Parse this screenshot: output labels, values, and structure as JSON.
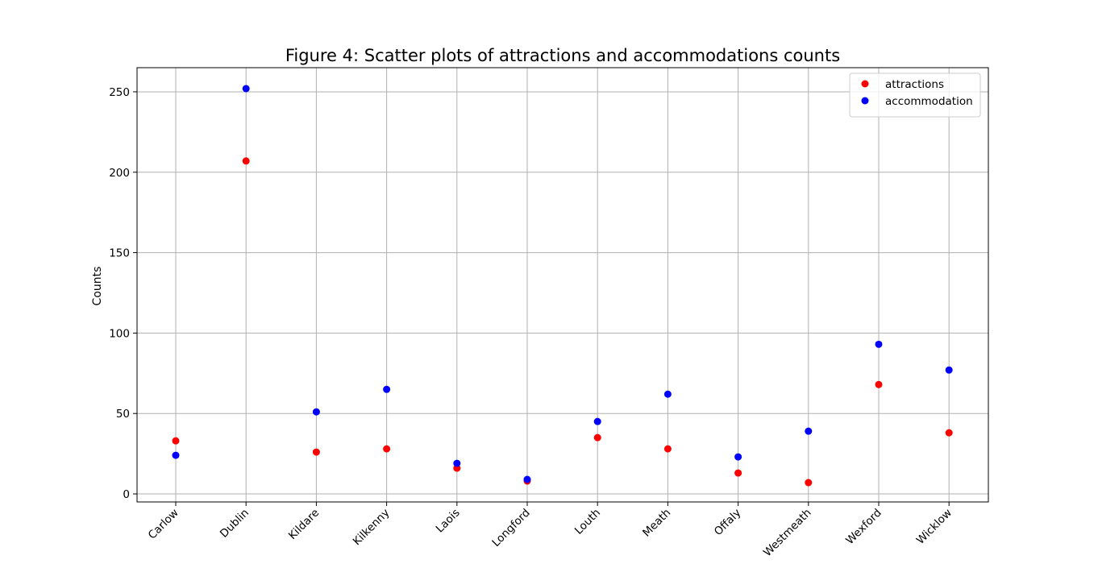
{
  "chart_data": {
    "type": "scatter",
    "title": "Figure 4: Scatter plots of attractions and accommodations counts",
    "xlabel": "",
    "ylabel": "Counts",
    "categories": [
      "Carlow",
      "Dublin",
      "Kildare",
      "Kilkenny",
      "Laois",
      "Longford",
      "Louth",
      "Meath",
      "Offaly",
      "Westmeath",
      "Wexford",
      "Wicklow"
    ],
    "ylim": [
      -5,
      265
    ],
    "yticks": [
      0,
      50,
      100,
      150,
      200,
      250
    ],
    "grid": true,
    "legend_position": "top-right",
    "x_tick_rotation": 45,
    "series": [
      {
        "name": "attractions",
        "color": "#ff0000",
        "values": [
          33,
          207,
          26,
          28,
          16,
          8,
          35,
          28,
          13,
          7,
          68,
          38
        ]
      },
      {
        "name": "accommodation",
        "color": "#0000ff",
        "values": [
          24,
          252,
          51,
          65,
          19,
          9,
          45,
          62,
          23,
          39,
          93,
          77
        ]
      }
    ]
  }
}
